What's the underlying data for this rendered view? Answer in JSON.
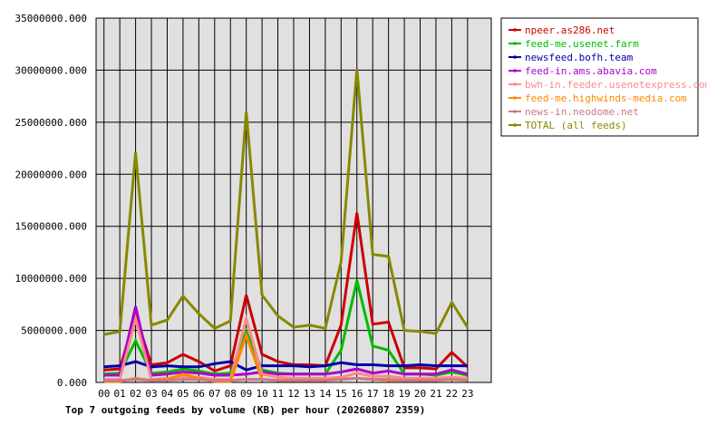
{
  "chart_data": {
    "type": "line",
    "title": "Top 7 outgoing feeds by volume (KB) per hour (20260807 2359)",
    "xlabel": "",
    "ylabel": "",
    "categories": [
      "00",
      "01",
      "02",
      "03",
      "04",
      "05",
      "06",
      "07",
      "08",
      "09",
      "10",
      "11",
      "12",
      "13",
      "14",
      "15",
      "16",
      "17",
      "18",
      "19",
      "20",
      "21",
      "22",
      "23"
    ],
    "ylim": [
      0,
      35000000
    ],
    "yticks": [
      "0.000",
      "5000000.000",
      "10000000.000",
      "15000000.000",
      "20000000.000",
      "25000000.000",
      "30000000.000",
      "35000000.000"
    ],
    "grid": true,
    "legend_position": "top-right",
    "series": [
      {
        "name": "npeer.as286.net",
        "color": "#cc0000",
        "values": [
          1200000,
          1300000,
          6500000,
          1700000,
          1900000,
          2700000,
          2000000,
          1100000,
          1600000,
          8400000,
          2700000,
          2000000,
          1700000,
          1700000,
          1600000,
          5500000,
          16300000,
          5600000,
          5800000,
          1400000,
          1400000,
          1300000,
          2900000,
          1500000
        ]
      },
      {
        "name": "feed-me.usenet.farm",
        "color": "#00bb00",
        "values": [
          800000,
          900000,
          4000000,
          900000,
          1000000,
          1300000,
          1100000,
          800000,
          900000,
          4900000,
          1200000,
          900000,
          800000,
          800000,
          800000,
          3100000,
          9800000,
          3500000,
          3100000,
          800000,
          800000,
          700000,
          1000000,
          700000
        ]
      },
      {
        "name": "newsfeed.bofh.team",
        "color": "#0000aa",
        "values": [
          1500000,
          1600000,
          2000000,
          1500000,
          1600000,
          1500000,
          1500000,
          1800000,
          2000000,
          1200000,
          1600000,
          1600000,
          1600000,
          1500000,
          1600000,
          1900000,
          1700000,
          1700000,
          1600000,
          1600000,
          1700000,
          1600000,
          1600000,
          1600000
        ]
      },
      {
        "name": "feed-in.ams.abavia.com",
        "color": "#aa00cc",
        "values": [
          700000,
          700000,
          7300000,
          700000,
          800000,
          1000000,
          900000,
          700000,
          700000,
          800000,
          1000000,
          800000,
          800000,
          800000,
          800000,
          1000000,
          1300000,
          900000,
          1100000,
          800000,
          800000,
          800000,
          1200000,
          800000
        ]
      },
      {
        "name": "bwh-in.feeder.usenetexpress.com",
        "color": "#ff8888",
        "values": [
          300000,
          300000,
          6100000,
          300000,
          400000,
          600000,
          500000,
          300000,
          300000,
          6100000,
          800000,
          500000,
          400000,
          400000,
          400000,
          500000,
          900000,
          600000,
          600000,
          400000,
          400000,
          400000,
          500000,
          400000
        ]
      },
      {
        "name": "feed-me.highwinds-media.com",
        "color": "#ff8800",
        "values": [
          100000,
          100000,
          400000,
          200000,
          300000,
          800000,
          400000,
          100000,
          100000,
          4500000,
          300000,
          200000,
          200000,
          200000,
          200000,
          300000,
          400000,
          300000,
          200000,
          200000,
          200000,
          200000,
          300000,
          200000
        ]
      },
      {
        "name": "news-in.neodome.net",
        "color": "#cc7788",
        "values": [
          200000,
          200000,
          300000,
          200000,
          200000,
          300000,
          300000,
          200000,
          200000,
          300000,
          300000,
          200000,
          200000,
          200000,
          200000,
          300000,
          400000,
          300000,
          300000,
          200000,
          200000,
          200000,
          300000,
          200000
        ]
      },
      {
        "name": "TOTAL (all feeds)",
        "color": "#888800",
        "values": [
          4600000,
          4900000,
          22100000,
          5500000,
          6000000,
          8300000,
          6600000,
          5200000,
          5900000,
          26000000,
          8400000,
          6400000,
          5300000,
          5500000,
          5200000,
          11600000,
          30100000,
          12300000,
          12100000,
          5000000,
          4900000,
          4700000,
          7700000,
          5300000
        ]
      }
    ]
  }
}
